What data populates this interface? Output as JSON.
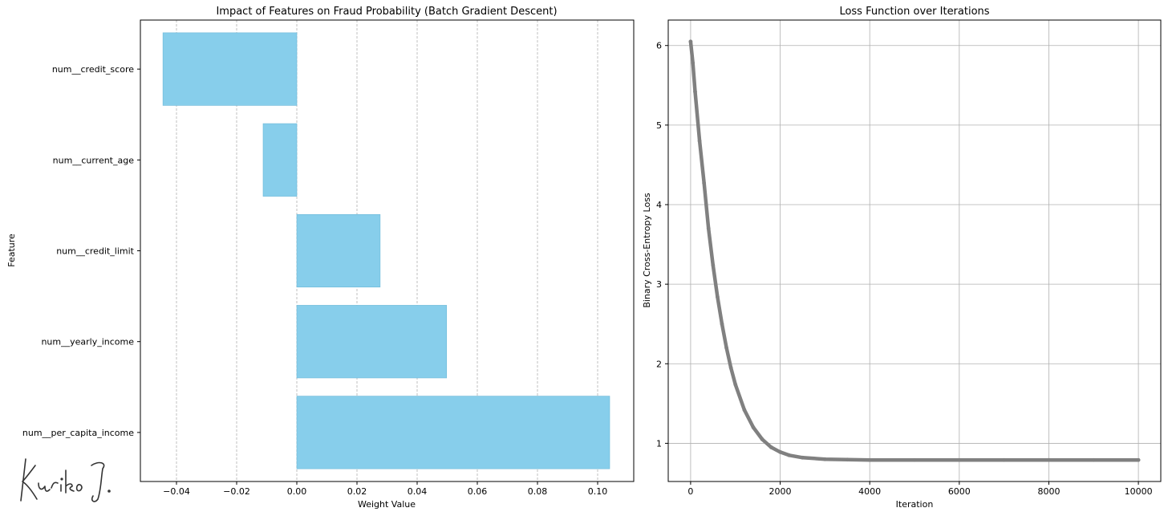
{
  "signature": "Kuriko I.",
  "chart_data": [
    {
      "type": "bar",
      "orientation": "horizontal",
      "title": "Impact of Features on Fraud Probability (Batch Gradient Descent)",
      "xlabel": "Weight Value",
      "ylabel": "Feature",
      "categories": [
        "num__credit_score",
        "num__current_age",
        "num__credit_limit",
        "num__yearly_income",
        "num__per_capita_income"
      ],
      "values": [
        -0.0445,
        -0.0112,
        0.0277,
        0.0498,
        0.104
      ],
      "xlim": [
        -0.052,
        0.112
      ],
      "xticks": [
        -0.04,
        -0.02,
        0.0,
        0.02,
        0.04,
        0.06,
        0.08,
        0.1
      ],
      "xtick_labels": [
        "−0.04",
        "−0.02",
        "0.00",
        "0.02",
        "0.04",
        "0.06",
        "0.08",
        "0.10"
      ],
      "grid": "x-dashed",
      "color": "#87ceeb",
      "edge_color": "#6cb8d8"
    },
    {
      "type": "line",
      "title": "Loss Function over Iterations",
      "xlabel": "Iteration",
      "ylabel": "Binary Cross-Entropy Loss",
      "x": [
        0,
        50,
        100,
        200,
        300,
        400,
        500,
        600,
        700,
        800,
        900,
        1000,
        1200,
        1400,
        1600,
        1800,
        2000,
        2200,
        2500,
        3000,
        3500,
        4000,
        5000,
        6000,
        7000,
        8000,
        9000,
        10000
      ],
      "y": [
        6.05,
        5.78,
        5.42,
        4.8,
        4.27,
        3.7,
        3.24,
        2.84,
        2.5,
        2.2,
        1.95,
        1.74,
        1.42,
        1.2,
        1.05,
        0.95,
        0.89,
        0.85,
        0.82,
        0.8,
        0.795,
        0.79,
        0.79,
        0.79,
        0.79,
        0.79,
        0.79,
        0.79
      ],
      "xlim": [
        -500,
        10500
      ],
      "ylim": [
        0.52,
        6.32
      ],
      "xticks": [
        0,
        2000,
        4000,
        6000,
        8000,
        10000
      ],
      "yticks": [
        1,
        2,
        3,
        4,
        5,
        6
      ],
      "grid": true,
      "color": "#808080"
    }
  ]
}
